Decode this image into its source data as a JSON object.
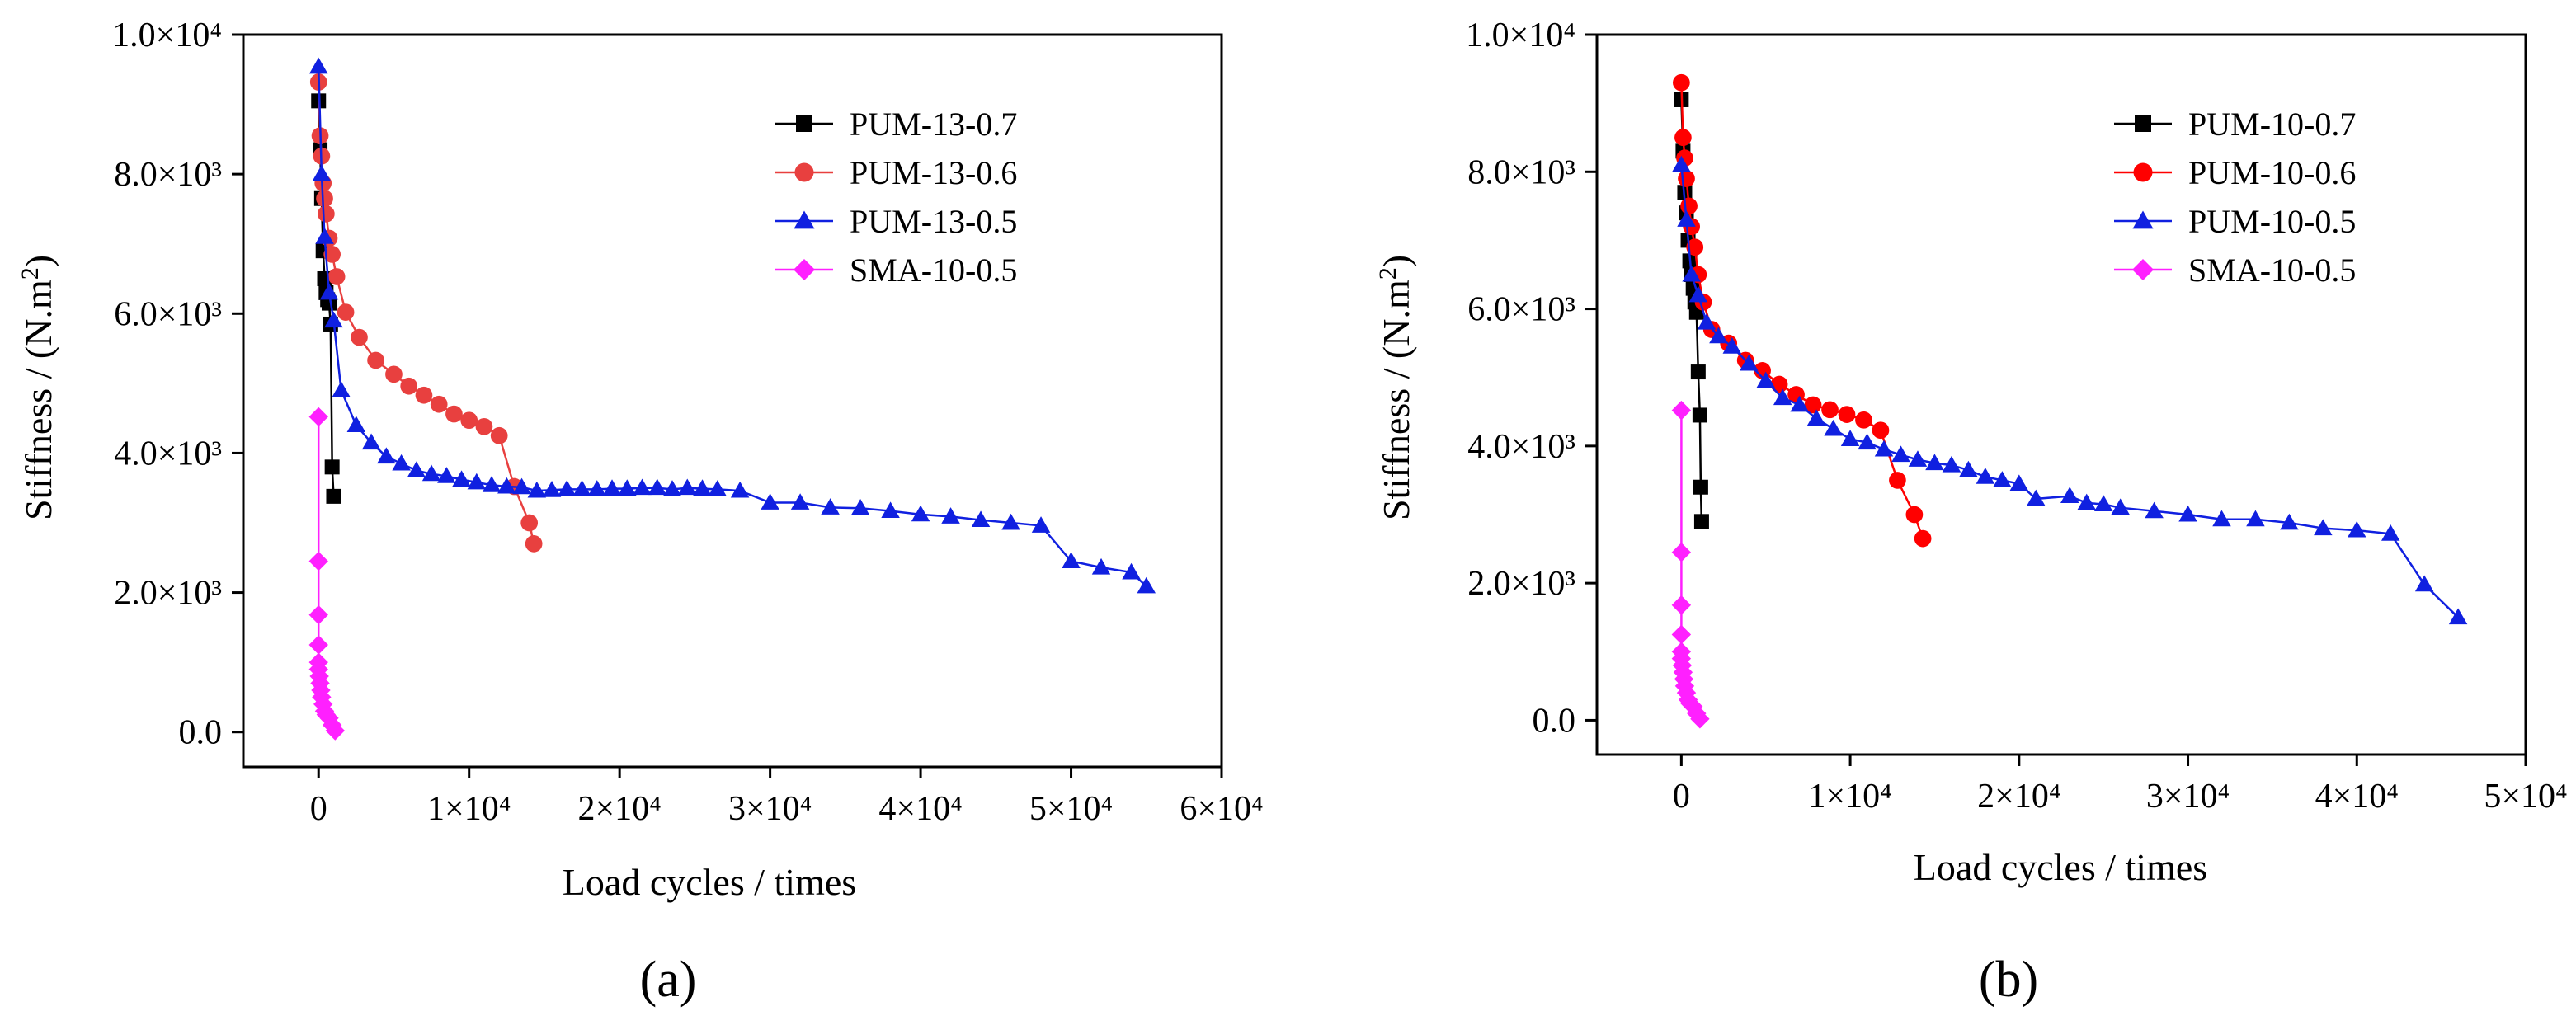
{
  "chart_data": [
    {
      "type": "line",
      "panel_label": "(a)",
      "xlabel": "Load cycles / times",
      "ylabel": "Stiffness / (N.m2)",
      "xlim": [
        -5000,
        60000
      ],
      "ylim": [
        -500,
        10000
      ],
      "xticks": [
        {
          "value": 0,
          "label": "0"
        },
        {
          "value": 10000,
          "label": "1×10⁴"
        },
        {
          "value": 20000,
          "label": "2×10⁴"
        },
        {
          "value": 30000,
          "label": "3×10⁴"
        },
        {
          "value": 40000,
          "label": "4×10⁴"
        },
        {
          "value": 50000,
          "label": "5×10⁴"
        },
        {
          "value": 60000,
          "label": "6×10⁴"
        }
      ],
      "yticks": [
        {
          "value": 0,
          "label": "0.0"
        },
        {
          "value": 2000,
          "label": "2.0×10³"
        },
        {
          "value": 4000,
          "label": "4.0×10³"
        },
        {
          "value": 6000,
          "label": "6.0×10³"
        },
        {
          "value": 8000,
          "label": "8.0×10³"
        },
        {
          "value": 10000,
          "label": "1.0×10⁴"
        }
      ],
      "series": [
        {
          "name": "PUM-13-0.7",
          "color": "#000000",
          "marker": "square",
          "x": [
            0,
            100,
            200,
            300,
            400,
            500,
            600,
            700,
            800,
            900,
            1000
          ],
          "y": [
            9050,
            8350,
            7650,
            6900,
            6500,
            6300,
            6200,
            6150,
            5850,
            3800,
            3380
          ]
        },
        {
          "name": "PUM-13-0.6",
          "color": "#e8403f",
          "marker": "circle",
          "x": [
            0,
            100,
            200,
            300,
            400,
            500,
            700,
            900,
            1200,
            1800,
            2700,
            3800,
            5000,
            6000,
            7000,
            8000,
            9000,
            10000,
            11000,
            12000,
            13000,
            14000,
            14300
          ],
          "y": [
            9320,
            8550,
            8260,
            7870,
            7650,
            7430,
            7080,
            6850,
            6530,
            6020,
            5660,
            5330,
            5130,
            4960,
            4830,
            4700,
            4560,
            4470,
            4380,
            4250,
            3520,
            3000,
            2700
          ]
        },
        {
          "name": "PUM-13-0.5",
          "color": "#1020e0",
          "marker": "triangle",
          "x": [
            0,
            200,
            400,
            700,
            1000,
            1500,
            2500,
            3500,
            4500,
            5500,
            6500,
            7500,
            8500,
            9500,
            10500,
            11500,
            12500,
            13500,
            14500,
            15500,
            16500,
            17500,
            18500,
            19500,
            20500,
            21500,
            22500,
            23500,
            24500,
            25500,
            26500,
            28000,
            30000,
            32000,
            34000,
            36000,
            38000,
            40000,
            42000,
            44000,
            46000,
            48000,
            50000,
            52000,
            54000,
            55000
          ],
          "y": [
            9540,
            8000,
            7100,
            6300,
            5900,
            4900,
            4400,
            4150,
            3950,
            3850,
            3750,
            3700,
            3670,
            3620,
            3580,
            3540,
            3520,
            3510,
            3460,
            3470,
            3480,
            3480,
            3480,
            3490,
            3490,
            3500,
            3500,
            3480,
            3500,
            3490,
            3480,
            3460,
            3290,
            3290,
            3220,
            3210,
            3170,
            3120,
            3090,
            3040,
            3000,
            2960,
            2450,
            2360,
            2290,
            2090
          ]
        },
        {
          "name": "SMA-10-0.5",
          "color": "#ff20ff",
          "marker": "diamond",
          "x": [
            0,
            0,
            0,
            0,
            0,
            0,
            50,
            100,
            150,
            200,
            300,
            400,
            500,
            700,
            900,
            1100
          ],
          "y": [
            4520,
            2450,
            1680,
            1250,
            1000,
            900,
            800,
            700,
            600,
            500,
            400,
            300,
            250,
            200,
            100,
            20
          ]
        }
      ]
    },
    {
      "type": "line",
      "panel_label": "(b)",
      "xlabel": "Load cycles / times",
      "ylabel": "Stiffness / (N.m2)",
      "xlim": [
        -5000,
        50000
      ],
      "ylim": [
        -500,
        10000
      ],
      "xticks": [
        {
          "value": 0,
          "label": "0"
        },
        {
          "value": 10000,
          "label": "1×10⁴"
        },
        {
          "value": 20000,
          "label": "2×10⁴"
        },
        {
          "value": 30000,
          "label": "3×10⁴"
        },
        {
          "value": 40000,
          "label": "4×10⁴"
        },
        {
          "value": 50000,
          "label": "5×10⁴"
        }
      ],
      "yticks": [
        {
          "value": 0,
          "label": "0.0"
        },
        {
          "value": 2000,
          "label": "2.0×10³"
        },
        {
          "value": 4000,
          "label": "4.0×10³"
        },
        {
          "value": 6000,
          "label": "6.0×10³"
        },
        {
          "value": 8000,
          "label": "8.0×10³"
        },
        {
          "value": 10000,
          "label": "1.0×10⁴"
        }
      ],
      "series": [
        {
          "name": "PUM-10-0.7",
          "color": "#000000",
          "marker": "square",
          "x": [
            0,
            100,
            200,
            300,
            400,
            500,
            600,
            700,
            800,
            900,
            1000,
            1100,
            1150,
            1200
          ],
          "y": [
            9050,
            8300,
            7700,
            7400,
            7000,
            6700,
            6500,
            6300,
            6100,
            5950,
            5080,
            4450,
            3400,
            2900
          ]
        },
        {
          "name": "PUM-10-0.6",
          "color": "#ff0000",
          "marker": "circle",
          "x": [
            0,
            100,
            200,
            300,
            450,
            600,
            800,
            1000,
            1300,
            1800,
            2800,
            3800,
            4800,
            5800,
            6800,
            7800,
            8800,
            9800,
            10800,
            11800,
            12800,
            13800,
            14300
          ],
          "y": [
            9300,
            8500,
            8200,
            7900,
            7500,
            7200,
            6900,
            6500,
            6100,
            5700,
            5500,
            5250,
            5100,
            4900,
            4750,
            4600,
            4530,
            4460,
            4380,
            4230,
            3500,
            3000,
            2650
          ]
        },
        {
          "name": "PUM-10-0.5",
          "color": "#1020e0",
          "marker": "triangle",
          "x": [
            0,
            300,
            600,
            1000,
            1500,
            2200,
            3000,
            4000,
            5000,
            6000,
            7000,
            8000,
            9000,
            10000,
            11000,
            12000,
            13000,
            14000,
            15000,
            16000,
            17000,
            18000,
            19000,
            20000,
            21000,
            23000,
            24000,
            25000,
            26000,
            28000,
            30000,
            32000,
            34000,
            36000,
            38000,
            40000,
            42000,
            44000,
            46000
          ],
          "y": [
            8100,
            7300,
            6500,
            6200,
            5800,
            5600,
            5450,
            5200,
            4950,
            4700,
            4600,
            4400,
            4250,
            4100,
            4050,
            3950,
            3870,
            3800,
            3750,
            3720,
            3650,
            3550,
            3500,
            3450,
            3230,
            3270,
            3170,
            3150,
            3100,
            3050,
            3000,
            2930,
            2930,
            2880,
            2800,
            2770,
            2720,
            1980,
            1500
          ]
        },
        {
          "name": "SMA-10-0.5",
          "color": "#ff20ff",
          "marker": "diamond",
          "x": [
            0,
            0,
            0,
            0,
            0,
            0,
            50,
            100,
            150,
            200,
            300,
            400,
            500,
            700,
            900,
            1100
          ],
          "y": [
            4520,
            2450,
            1680,
            1250,
            1000,
            900,
            800,
            700,
            600,
            500,
            400,
            300,
            250,
            200,
            100,
            20
          ]
        }
      ]
    }
  ]
}
